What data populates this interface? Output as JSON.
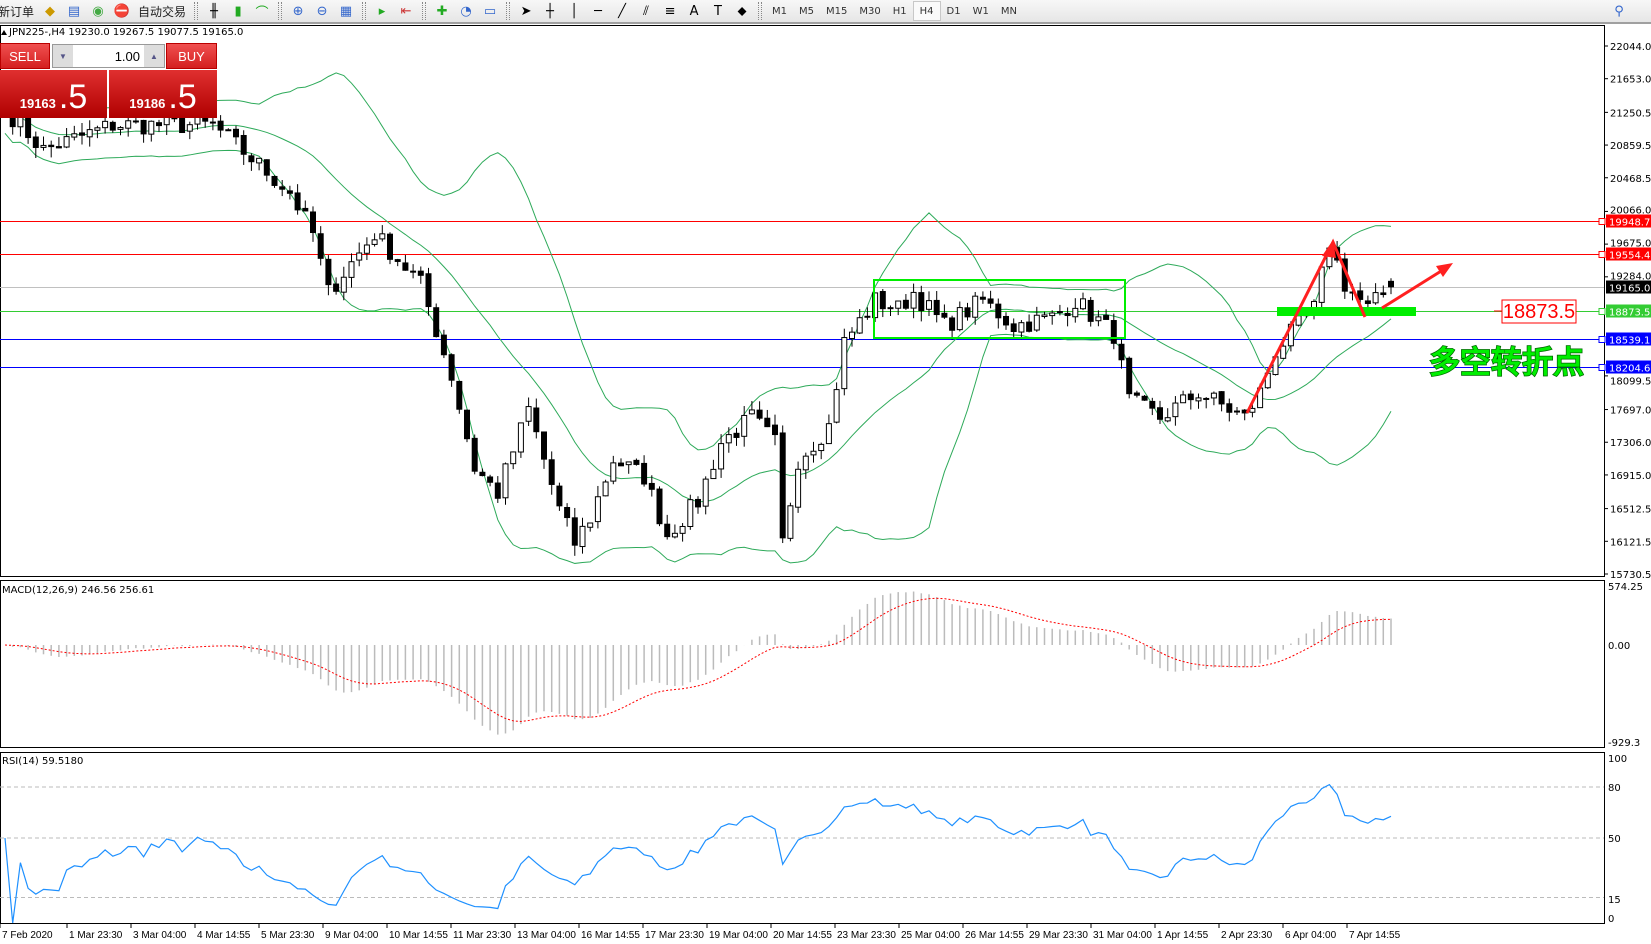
{
  "toolbar": {
    "new_order_label": "新订单",
    "auto_trading_label": "自动交易",
    "timeframes": [
      "M1",
      "M5",
      "M15",
      "M30",
      "H1",
      "H4",
      "D1",
      "W1",
      "MN"
    ],
    "active_timeframe": "H4"
  },
  "chart_title": "JPN225-,H4  19230.0 19267.5 19077.5 19165.0",
  "trade_panel": {
    "sell_label": "SELL",
    "buy_label": "BUY",
    "lot": "1.00",
    "sell_price_main": "19163",
    "sell_price_big": ".5",
    "buy_price_main": "19186",
    "buy_price_big": ".5"
  },
  "price_axis": [
    "22044.0",
    "21653.0",
    "21250.5",
    "20859.5",
    "20468.5",
    "20066.0",
    "19675.0",
    "19284.0",
    "18099.5",
    "17697.0",
    "17306.0",
    "16915.0",
    "16512.5",
    "16121.5",
    "15730.5"
  ],
  "levels": [
    {
      "price": "19948.7",
      "color": "#ff0000"
    },
    {
      "price": "19554.4",
      "color": "#ff0000"
    },
    {
      "price": "19165.0",
      "color": "#000000",
      "line": "#c0c0c0"
    },
    {
      "price": "18873.5",
      "color": "#33cc33"
    },
    {
      "price": "18539.1",
      "color": "#0000ff"
    },
    {
      "price": "18204.6",
      "color": "#0000ff"
    }
  ],
  "annotations": {
    "price_label": "18873.5",
    "text": "多空转折点",
    "text_color": "#00ee00",
    "arrow_color": "#ff0000",
    "box_color": "#00ee00"
  },
  "macd": {
    "title": "MACD(12,26,9) 246.56 256.61",
    "axis": [
      "574.25",
      "0.00",
      "-929.3"
    ]
  },
  "rsi": {
    "title": "RSI(14) 59.5180",
    "axis": [
      "100",
      "80",
      "50",
      "15",
      "0"
    ]
  },
  "time_axis": [
    "7 Feb 2020",
    "1 Mar 23:30",
    "3 Mar 04:00",
    "4 Mar 14:55",
    "5 Mar 23:30",
    "9 Mar 04:00",
    "10 Mar 14:55",
    "11 Mar 23:30",
    "13 Mar 04:00",
    "16 Mar 14:55",
    "17 Mar 23:30",
    "19 Mar 04:00",
    "20 Mar 14:55",
    "23 Mar 23:30",
    "25 Mar 04:00",
    "26 Mar 14:55",
    "29 Mar 23:30",
    "31 Mar 04:00",
    "1 Apr 14:55",
    "2 Apr 23:30",
    "6 Apr 04:00",
    "7 Apr 14:55"
  ],
  "chart_data": {
    "type": "candlestick",
    "symbol": "JPN225-",
    "timeframe": "H4",
    "ylim": [
      15730.5,
      22044.0
    ],
    "last": {
      "open": 19230.0,
      "high": 19267.5,
      "low": 19077.5,
      "close": 19165.0
    },
    "close_path": [
      [
        0,
        21300
      ],
      [
        5,
        20800
      ],
      [
        14,
        21100
      ],
      [
        27,
        21100
      ],
      [
        37,
        20300
      ],
      [
        40,
        19800
      ],
      [
        42,
        19100
      ],
      [
        48,
        19800
      ],
      [
        54,
        19200
      ],
      [
        58,
        18100
      ],
      [
        61,
        17000
      ],
      [
        64,
        16700
      ],
      [
        68,
        17700
      ],
      [
        72,
        16500
      ],
      [
        74,
        16100
      ],
      [
        76,
        16400
      ],
      [
        79,
        17100
      ],
      [
        83,
        16900
      ],
      [
        86,
        16200
      ],
      [
        90,
        16600
      ],
      [
        93,
        17300
      ],
      [
        97,
        17600
      ],
      [
        100,
        17300
      ],
      [
        101,
        16100
      ],
      [
        103,
        17100
      ],
      [
        107,
        17500
      ],
      [
        109,
        18500
      ],
      [
        113,
        19000
      ],
      [
        116,
        18900
      ],
      [
        118,
        19100
      ],
      [
        122,
        18700
      ],
      [
        127,
        19000
      ],
      [
        131,
        18700
      ],
      [
        136,
        18800
      ],
      [
        139,
        19000
      ],
      [
        144,
        18600
      ],
      [
        146,
        17800
      ],
      [
        150,
        17600
      ],
      [
        155,
        17900
      ],
      [
        161,
        17600
      ],
      [
        163,
        17900
      ],
      [
        165,
        18400
      ],
      [
        170,
        18900
      ],
      [
        172,
        19700
      ],
      [
        174,
        19200
      ],
      [
        177,
        18900
      ],
      [
        180,
        19165
      ]
    ],
    "indicators": [
      "Bollinger Bands(20,2)",
      "MACD(12,26,9)",
      "RSI(14)"
    ]
  }
}
